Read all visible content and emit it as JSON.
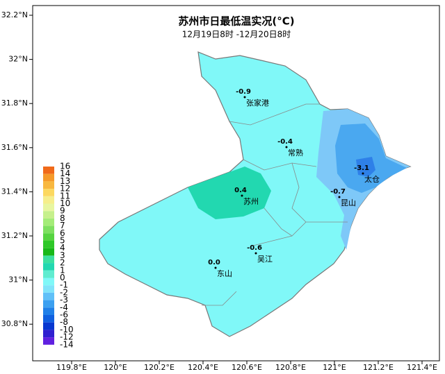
{
  "title": "苏州市日最低温实况(°C)",
  "subtitle": "12月19日8时 -12月20日8时",
  "yticks": [
    "32.2°N",
    "32°N",
    "31.8°N",
    "31.6°N",
    "31.4°N",
    "31.2°N",
    "31°N",
    "30.8°N"
  ],
  "xticks": [
    "119.8°E",
    "120°E",
    "120.2°E",
    "120.4°E",
    "120.6°E",
    "120.8°E",
    "121°E",
    "121.2°E",
    "121.4°E"
  ],
  "legend": {
    "labels": [
      "16",
      "14",
      "13",
      "12",
      "11",
      "10",
      "9",
      "8",
      "7",
      "6",
      "5",
      "4",
      "3",
      "2",
      "1",
      "0",
      "-1",
      "-2",
      "-3",
      "-4",
      "-6",
      "-8",
      "-10",
      "-12",
      "-14"
    ],
    "colors": [
      "#f06a1a",
      "#f59a2a",
      "#f8b840",
      "#fcd860",
      "#f6ee8c",
      "#e8f6a0",
      "#c6f08c",
      "#a4ec78",
      "#7ee060",
      "#56d440",
      "#2ec828",
      "#18b818",
      "#3ce0a0",
      "#22d8b0",
      "#60ecd0",
      "#80f8f8",
      "#80e4fa",
      "#60c0f8",
      "#3ca0f0",
      "#2080e8",
      "#1060e0",
      "#0838d0",
      "#3020d0",
      "#6020e0"
    ]
  },
  "stations": [
    {
      "name": "张家港",
      "value": "-0.9"
    },
    {
      "name": "常熟",
      "value": "-0.4"
    },
    {
      "name": "太仓",
      "value": "-3.1"
    },
    {
      "name": "苏州",
      "value": "0.4"
    },
    {
      "name": "昆山",
      "value": "-0.7"
    },
    {
      "name": "吴江",
      "value": "-0.6"
    },
    {
      "name": "东山",
      "value": "0.0"
    }
  ]
}
